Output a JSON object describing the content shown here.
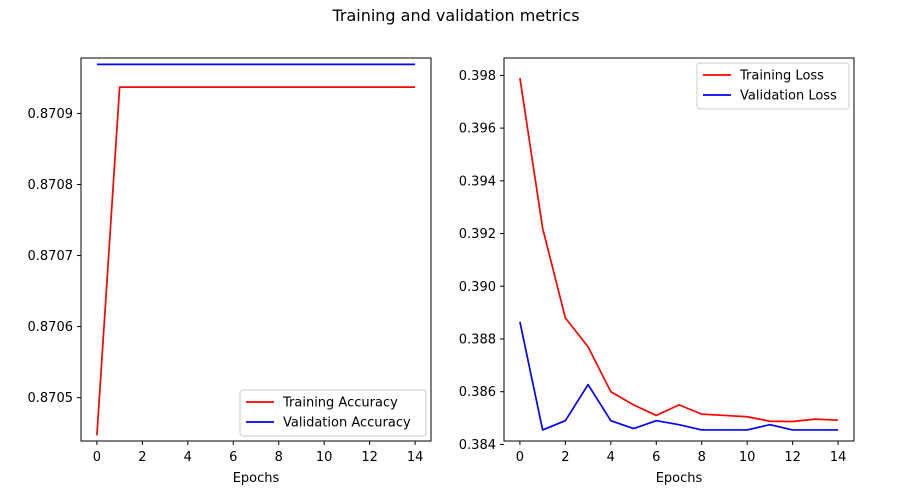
{
  "figure": {
    "title": "Training and validation metrics"
  },
  "chart_data": [
    {
      "type": "line",
      "xlabel": "Epochs",
      "ylabel": "",
      "xlim": [
        -0.7,
        14.7
      ],
      "ylim": [
        0.870439,
        0.870978
      ],
      "xticks": [
        0,
        2,
        4,
        6,
        8,
        10,
        12,
        14
      ],
      "xtick_labels": [
        "0",
        "2",
        "4",
        "6",
        "8",
        "10",
        "12",
        "14"
      ],
      "yticks": [
        0.8705,
        0.8706,
        0.8707,
        0.8708,
        0.8709
      ],
      "ytick_labels": [
        "0.8705",
        "0.8706",
        "0.8707",
        "0.8708",
        "0.8709"
      ],
      "x": [
        0,
        1,
        2,
        3,
        4,
        5,
        6,
        7,
        8,
        9,
        10,
        11,
        12,
        13,
        14
      ],
      "series": [
        {
          "name": "Training Accuracy",
          "color": "#ff0000",
          "values": [
            0.870447,
            0.870937,
            0.870937,
            0.870937,
            0.870937,
            0.870937,
            0.870937,
            0.870937,
            0.870937,
            0.870937,
            0.870937,
            0.870937,
            0.870937,
            0.870937,
            0.870937
          ]
        },
        {
          "name": "Validation Accuracy",
          "color": "#0000ff",
          "values": [
            0.870969,
            0.870969,
            0.870969,
            0.870969,
            0.870969,
            0.870969,
            0.870969,
            0.870969,
            0.870969,
            0.870969,
            0.870969,
            0.870969,
            0.870969,
            0.870969,
            0.870969
          ]
        }
      ],
      "grid": false,
      "legend_position": "lower right"
    },
    {
      "type": "line",
      "xlabel": "Epochs",
      "ylabel": "",
      "xlim": [
        -0.7,
        14.7
      ],
      "ylim": [
        0.38413,
        0.39866
      ],
      "xticks": [
        0,
        2,
        4,
        6,
        8,
        10,
        12,
        14
      ],
      "xtick_labels": [
        "0",
        "2",
        "4",
        "6",
        "8",
        "10",
        "12",
        "14"
      ],
      "yticks": [
        0.384,
        0.386,
        0.388,
        0.39,
        0.392,
        0.394,
        0.396,
        0.398
      ],
      "ytick_labels": [
        "0.384",
        "0.386",
        "0.388",
        "0.390",
        "0.392",
        "0.394",
        "0.396",
        "0.398"
      ],
      "x": [
        0,
        1,
        2,
        3,
        4,
        5,
        6,
        7,
        8,
        9,
        10,
        11,
        12,
        13,
        14
      ],
      "series": [
        {
          "name": "Training Loss",
          "color": "#ff0000",
          "values": [
            0.3979,
            0.3922,
            0.3888,
            0.3877,
            0.386,
            0.3855,
            0.3851,
            0.3855,
            0.38515,
            0.3851,
            0.38505,
            0.38488,
            0.38487,
            0.38496,
            0.38492
          ]
        },
        {
          "name": "Validation Loss",
          "color": "#0000ff",
          "values": [
            0.38865,
            0.38455,
            0.3849,
            0.38627,
            0.3849,
            0.3846,
            0.3849,
            0.38475,
            0.38455,
            0.38455,
            0.38455,
            0.38475,
            0.38455,
            0.38455,
            0.38455
          ]
        }
      ],
      "grid": false,
      "legend_position": "upper right"
    }
  ]
}
